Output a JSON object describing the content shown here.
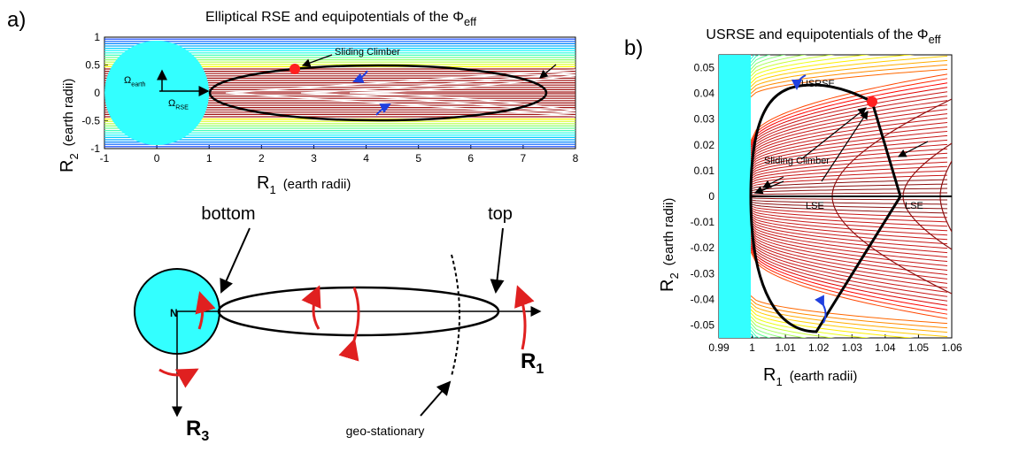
{
  "chart_data": [
    {
      "type": "contour",
      "panel": "a)",
      "title": {
        "text": "Elliptical RSE and equipotentials of the Φ",
        "subscript": "eff"
      },
      "xlim": [
        -1,
        8
      ],
      "xticks": [
        -1,
        0,
        1,
        2,
        3,
        4,
        5,
        6,
        7,
        8
      ],
      "ylim": [
        -1,
        1
      ],
      "yticks": [
        -1,
        -0.5,
        0,
        0.5,
        1
      ],
      "x_label": {
        "symbol": "R",
        "subscript": "1",
        "text": "(earth radii)"
      },
      "y_label": {
        "symbol": "R",
        "subscript": "2",
        "text": "(earth radii)"
      },
      "annotations": {
        "climber": "Sliding Climber",
        "omega_earth": {
          "symbol": "Ω",
          "subscript": "earth"
        },
        "omega_rse": {
          "symbol": "Ω",
          "subscript": "RSE"
        }
      }
    },
    {
      "type": "contour",
      "panel": "b)",
      "title": {
        "text": "USRSE and equipotentials of the Φ",
        "subscript": "eff"
      },
      "xlim": [
        0.99,
        1.06
      ],
      "xticks": [
        0.99,
        1,
        1.01,
        1.02,
        1.03,
        1.04,
        1.05,
        1.06
      ],
      "ylim": [
        -0.055,
        0.055
      ],
      "yticks": [
        0.05,
        0.04,
        0.03,
        0.02,
        0.01,
        0,
        -0.01,
        -0.02,
        -0.03,
        -0.04,
        -0.05
      ],
      "x_label": {
        "symbol": "R",
        "subscript": "1",
        "text": "(earth radii)"
      },
      "y_label": {
        "symbol": "R",
        "subscript": "2",
        "text": "(earth radii)"
      },
      "annotations": {
        "usrse": "USRSE",
        "climber": "Sliding Climber",
        "lse_1": "LSE",
        "lse_2": "LSE"
      }
    }
  ],
  "diagram": {
    "bottom": "bottom",
    "top": "top",
    "north": "N",
    "r1": {
      "symbol": "R",
      "subscript": "1"
    },
    "r3": {
      "symbol": "R",
      "subscript": "3"
    },
    "geo": "geo-stationary"
  }
}
